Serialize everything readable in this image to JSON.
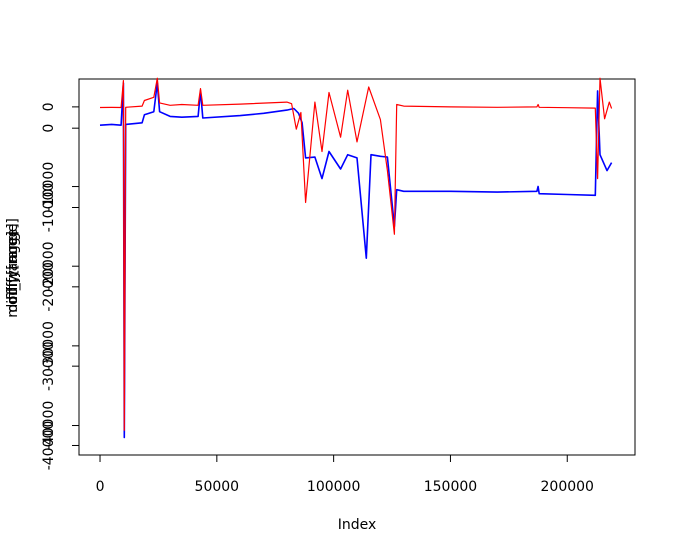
{
  "chart_data": {
    "type": "line",
    "title": "",
    "xlabel": "Index",
    "ylabel_overlaid": [
      "modify[range]",
      "diff[range]",
      "diff_y[range]"
    ],
    "xlim": [
      -9000,
      229000
    ],
    "x_ticks": [
      0,
      50000,
      100000,
      150000,
      200000
    ],
    "x_tick_labels": [
      "0",
      "50000",
      "100000",
      "150000",
      "200000"
    ],
    "y_axes": [
      {
        "name": "outer",
        "ylim": [
          -43700,
          3500
        ],
        "ticks": [
          0,
          -10000,
          -20000,
          -30000,
          -40000
        ],
        "tick_labels": [
          "0",
          "-10000",
          "-20000",
          "-30000",
          "-40000"
        ]
      },
      {
        "name": "inner",
        "ylim": [
          -41200,
          6200
        ],
        "ticks": [
          0,
          -10000,
          -20000,
          -30000,
          -40000
        ],
        "tick_labels": [
          "0",
          "-10000",
          "-20000",
          "-30000",
          "-40000"
        ]
      }
    ],
    "grid": false,
    "legend": "none",
    "series": [
      {
        "color": "#0000ff",
        "values": [
          [
            0,
            -2300
          ],
          [
            5000,
            -2200
          ],
          [
            9000,
            -2300
          ],
          [
            10000,
            3000
          ],
          [
            10400,
            -41500
          ],
          [
            11000,
            -2200
          ],
          [
            18000,
            -2000
          ],
          [
            19000,
            -1000
          ],
          [
            23000,
            -600
          ],
          [
            24500,
            3000
          ],
          [
            25500,
            -600
          ],
          [
            30000,
            -1200
          ],
          [
            35000,
            -1300
          ],
          [
            42000,
            -1200
          ],
          [
            43000,
            2000
          ],
          [
            44000,
            -1400
          ],
          [
            60000,
            -1100
          ],
          [
            70000,
            -800
          ],
          [
            80000,
            -400
          ],
          [
            83000,
            -200
          ],
          [
            85000,
            -800
          ],
          [
            86500,
            -2000
          ],
          [
            88000,
            -6400
          ],
          [
            92000,
            -6300
          ],
          [
            95000,
            -9000
          ],
          [
            98000,
            -5600
          ],
          [
            103000,
            -7800
          ],
          [
            106000,
            -6000
          ],
          [
            110000,
            -6400
          ],
          [
            114000,
            -19000
          ],
          [
            116000,
            -6000
          ],
          [
            120000,
            -6200
          ],
          [
            123000,
            -6300
          ],
          [
            126000,
            -15000
          ],
          [
            127000,
            -10400
          ],
          [
            130000,
            -10600
          ],
          [
            150000,
            -10600
          ],
          [
            170000,
            -10700
          ],
          [
            187000,
            -10600
          ],
          [
            187500,
            -10000
          ],
          [
            188000,
            -10900
          ],
          [
            200000,
            -11000
          ],
          [
            212000,
            -11100
          ],
          [
            213000,
            2000
          ],
          [
            214000,
            -6000
          ],
          [
            217000,
            -8000
          ],
          [
            219000,
            -7000
          ]
        ]
      },
      {
        "color": "#ff0000",
        "values": [
          [
            0,
            -80
          ],
          [
            5000,
            -60
          ],
          [
            9000,
            -80
          ],
          [
            10000,
            3300
          ],
          [
            10400,
            -40600
          ],
          [
            11000,
            -50
          ],
          [
            18000,
            100
          ],
          [
            19000,
            800
          ],
          [
            23000,
            1200
          ],
          [
            24500,
            3600
          ],
          [
            25500,
            500
          ],
          [
            30000,
            200
          ],
          [
            35000,
            300
          ],
          [
            42000,
            200
          ],
          [
            43000,
            2300
          ],
          [
            44000,
            200
          ],
          [
            60000,
            350
          ],
          [
            80000,
            600
          ],
          [
            82000,
            400
          ],
          [
            84000,
            -2800
          ],
          [
            86000,
            -700
          ],
          [
            88000,
            -12000
          ],
          [
            92000,
            600
          ],
          [
            95000,
            -5600
          ],
          [
            98000,
            1800
          ],
          [
            103000,
            -3800
          ],
          [
            106000,
            2100
          ],
          [
            110000,
            -4400
          ],
          [
            115000,
            2500
          ],
          [
            120000,
            -1600
          ],
          [
            123000,
            -8000
          ],
          [
            126000,
            -16000
          ],
          [
            127000,
            300
          ],
          [
            130000,
            100
          ],
          [
            150000,
            0
          ],
          [
            170000,
            -50
          ],
          [
            187000,
            0
          ],
          [
            187500,
            300
          ],
          [
            188000,
            -50
          ],
          [
            200000,
            -100
          ],
          [
            212000,
            -150
          ],
          [
            213000,
            -9000
          ],
          [
            214000,
            3600
          ],
          [
            216000,
            -1500
          ],
          [
            218000,
            600
          ],
          [
            219000,
            -200
          ]
        ]
      }
    ]
  }
}
